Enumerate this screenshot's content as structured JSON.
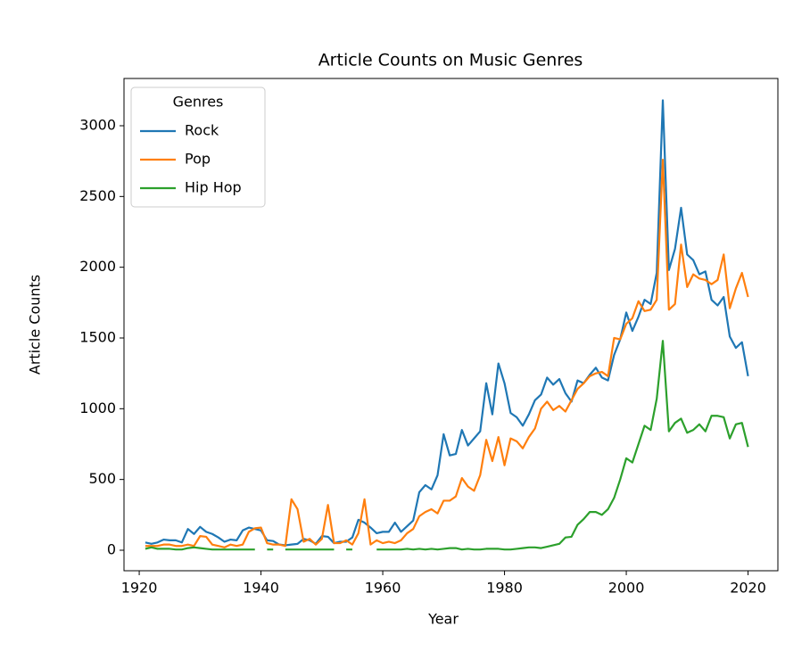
{
  "chart_data": {
    "type": "line",
    "title": "Article Counts on Music Genres",
    "x_label": "Year",
    "y_label": "Article Counts",
    "x": [
      1921,
      1922,
      1923,
      1924,
      1925,
      1926,
      1927,
      1928,
      1929,
      1930,
      1931,
      1932,
      1933,
      1934,
      1935,
      1936,
      1937,
      1938,
      1939,
      1940,
      1941,
      1942,
      1943,
      1944,
      1945,
      1946,
      1947,
      1948,
      1949,
      1950,
      1951,
      1952,
      1953,
      1954,
      1955,
      1956,
      1957,
      1958,
      1959,
      1960,
      1961,
      1962,
      1963,
      1964,
      1965,
      1966,
      1967,
      1968,
      1969,
      1970,
      1971,
      1972,
      1973,
      1974,
      1975,
      1976,
      1977,
      1978,
      1979,
      1980,
      1981,
      1982,
      1983,
      1984,
      1985,
      1986,
      1987,
      1988,
      1989,
      1990,
      1991,
      1992,
      1993,
      1994,
      1995,
      1996,
      1997,
      1998,
      1999,
      2000,
      2001,
      2002,
      2003,
      2004,
      2005,
      2006,
      2007,
      2008,
      2009,
      2010,
      2011,
      2012,
      2013,
      2014,
      2015,
      2016,
      2017,
      2018,
      2019,
      2020
    ],
    "series": [
      {
        "name": "Rock",
        "color": "#1f77b4",
        "values": [
          55,
          45,
          55,
          75,
          70,
          70,
          55,
          150,
          115,
          165,
          130,
          115,
          90,
          60,
          75,
          70,
          140,
          160,
          150,
          140,
          70,
          65,
          40,
          35,
          40,
          45,
          80,
          70,
          45,
          100,
          95,
          50,
          60,
          60,
          90,
          215,
          195,
          160,
          120,
          130,
          130,
          195,
          130,
          170,
          210,
          410,
          460,
          430,
          530,
          820,
          670,
          680,
          850,
          740,
          790,
          840,
          1180,
          960,
          1320,
          1180,
          970,
          940,
          880,
          960,
          1060,
          1100,
          1220,
          1170,
          1210,
          1110,
          1050,
          1200,
          1180,
          1240,
          1290,
          1220,
          1200,
          1380,
          1490,
          1680,
          1550,
          1650,
          1770,
          1740,
          1960,
          3180,
          1980,
          2130,
          2420,
          2090,
          2050,
          1950,
          1970,
          1770,
          1730,
          1790,
          1510,
          1430,
          1470,
          1230
        ]
      },
      {
        "name": "Pop",
        "color": "#ff7f0e",
        "values": [
          30,
          30,
          30,
          40,
          40,
          30,
          30,
          40,
          30,
          100,
          95,
          40,
          30,
          20,
          40,
          30,
          40,
          130,
          155,
          160,
          50,
          40,
          40,
          30,
          360,
          290,
          60,
          80,
          40,
          80,
          320,
          50,
          50,
          70,
          40,
          120,
          360,
          40,
          70,
          50,
          60,
          50,
          70,
          120,
          150,
          240,
          270,
          290,
          260,
          350,
          350,
          380,
          510,
          450,
          420,
          530,
          780,
          630,
          800,
          600,
          790,
          770,
          720,
          800,
          860,
          1000,
          1050,
          990,
          1020,
          980,
          1060,
          1140,
          1180,
          1230,
          1250,
          1260,
          1230,
          1500,
          1490,
          1600,
          1640,
          1760,
          1690,
          1700,
          1770,
          2760,
          1700,
          1740,
          2160,
          1860,
          1950,
          1920,
          1910,
          1880,
          1910,
          2090,
          1710,
          1850,
          1960,
          1790
        ]
      },
      {
        "name": "Hip Hop",
        "color": "#2ca02c",
        "values": [
          10,
          20,
          10,
          10,
          10,
          5,
          5,
          15,
          20,
          15,
          10,
          5,
          5,
          5,
          5,
          5,
          5,
          5,
          5,
          null,
          5,
          5,
          null,
          5,
          5,
          5,
          5,
          5,
          5,
          5,
          5,
          5,
          null,
          5,
          5,
          null,
          5,
          null,
          5,
          5,
          5,
          5,
          5,
          10,
          5,
          10,
          5,
          10,
          5,
          10,
          15,
          15,
          5,
          10,
          5,
          5,
          10,
          10,
          10,
          5,
          5,
          10,
          15,
          20,
          20,
          15,
          25,
          35,
          45,
          90,
          95,
          180,
          220,
          270,
          270,
          250,
          290,
          370,
          500,
          650,
          620,
          750,
          880,
          850,
          1070,
          1480,
          840,
          900,
          930,
          830,
          850,
          890,
          840,
          950,
          950,
          940,
          790,
          890,
          900,
          730
        ]
      }
    ],
    "xlim": [
      1917.5,
      2024.9
    ],
    "ylim": [
      -145,
      3334
    ],
    "xticks": [
      1920,
      1940,
      1960,
      1980,
      2000,
      2020
    ],
    "yticks": [
      0,
      500,
      1000,
      1500,
      2000,
      2500,
      3000
    ],
    "legend": {
      "title": "Genres",
      "position": "upper left"
    }
  }
}
